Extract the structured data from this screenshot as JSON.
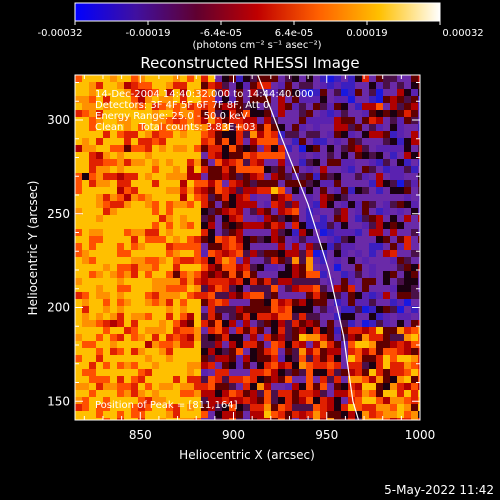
{
  "colorbar": {
    "tick_labels": [
      "-0.00032",
      "-0.00019",
      "-6.4e-05",
      "6.4e-05",
      "0.00019",
      "0.00032"
    ],
    "units": "(photons cm⁻² s⁻¹ asec⁻²)",
    "colors": [
      "#0000ff",
      "#4010a0",
      "#600030",
      "#c00000",
      "#ff6000",
      "#ffc000",
      "#ffffff"
    ]
  },
  "chart_data": {
    "type": "heatmap",
    "title": "Reconstructed RHESSI Image",
    "xlabel": "Heliocentric X (arcsec)",
    "ylabel": "Heliocentric Y (arcsec)",
    "xlim": [
      815,
      1000
    ],
    "ylim": [
      140,
      324
    ],
    "x_ticks": [
      850,
      900,
      950,
      1000
    ],
    "y_ticks": [
      150,
      200,
      250,
      300
    ],
    "value_range": [
      -0.00032,
      0.00032
    ],
    "annotations": [
      "14-Dec-2004 14:40:32.000 to 14:44:40.000",
      "Detectors: 3F 4F 5F 6F 7F 8F, Att 0",
      "Energy Range: 25.0 - 50.0 keV",
      "Clean     Total counts: 3.83E+03"
    ],
    "peak_label": "Position of Peak = [811,164]",
    "limb_curve": [
      [
        913,
        324
      ],
      [
        926,
        290
      ],
      [
        940,
        255
      ],
      [
        951,
        220
      ],
      [
        959,
        185
      ],
      [
        964,
        150
      ],
      [
        967,
        140
      ]
    ]
  },
  "timestamp": "5-May-2022 11:42"
}
